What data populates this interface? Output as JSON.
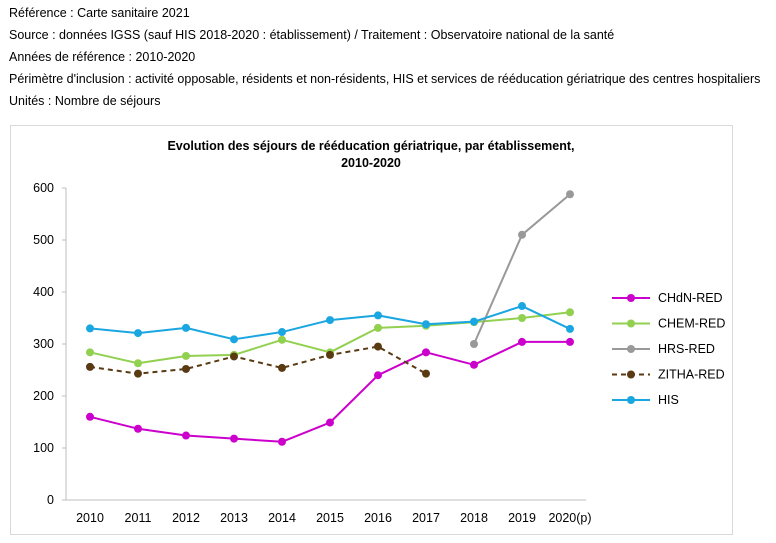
{
  "header_lines": [
    "Référence : Carte sanitaire 2021",
    "Source : données IGSS (sauf HIS 2018-2020 : établissement) / Traitement : Observatoire national de la santé",
    "Années de référence : 2010-2020",
    "Périmètre d'inclusion : activité opposable, résidents et non-résidents, HIS et services de rééducation gériatrique des centres hospitaliers",
    "Unités : Nombre de séjours"
  ],
  "chart_data": {
    "type": "line",
    "title_lines": [
      "Evolution des séjours de rééducation gériatrique, par établissement,",
      "2010-2020"
    ],
    "categories": [
      "2010",
      "2011",
      "2012",
      "2013",
      "2014",
      "2015",
      "2016",
      "2017",
      "2018",
      "2019",
      "2020(p)"
    ],
    "ylim": [
      0,
      600
    ],
    "yticks": [
      0,
      100,
      200,
      300,
      400,
      500,
      600
    ],
    "grid": false,
    "legend_position": "right",
    "series": [
      {
        "name": "CHdN-RED",
        "color": "#cc00cc",
        "dashed": false,
        "values": [
          160,
          137,
          124,
          118,
          112,
          149,
          240,
          284,
          260,
          304,
          304
        ]
      },
      {
        "name": "CHEM-RED",
        "color": "#92d050",
        "dashed": false,
        "values": [
          284,
          263,
          277,
          279,
          308,
          284,
          331,
          335,
          342,
          350,
          361
        ]
      },
      {
        "name": "HRS-RED",
        "color": "#999999",
        "dashed": false,
        "values": [
          null,
          null,
          null,
          null,
          null,
          null,
          null,
          null,
          300,
          510,
          588
        ]
      },
      {
        "name": "ZITHA-RED",
        "color": "#5a3a12",
        "dashed": true,
        "values": [
          256,
          243,
          252,
          276,
          254,
          279,
          295,
          243,
          null,
          null,
          null
        ]
      },
      {
        "name": "HIS",
        "color": "#1aa6e0",
        "dashed": false,
        "values": [
          330,
          321,
          331,
          309,
          323,
          346,
          355,
          338,
          343,
          373,
          329
        ]
      }
    ]
  }
}
